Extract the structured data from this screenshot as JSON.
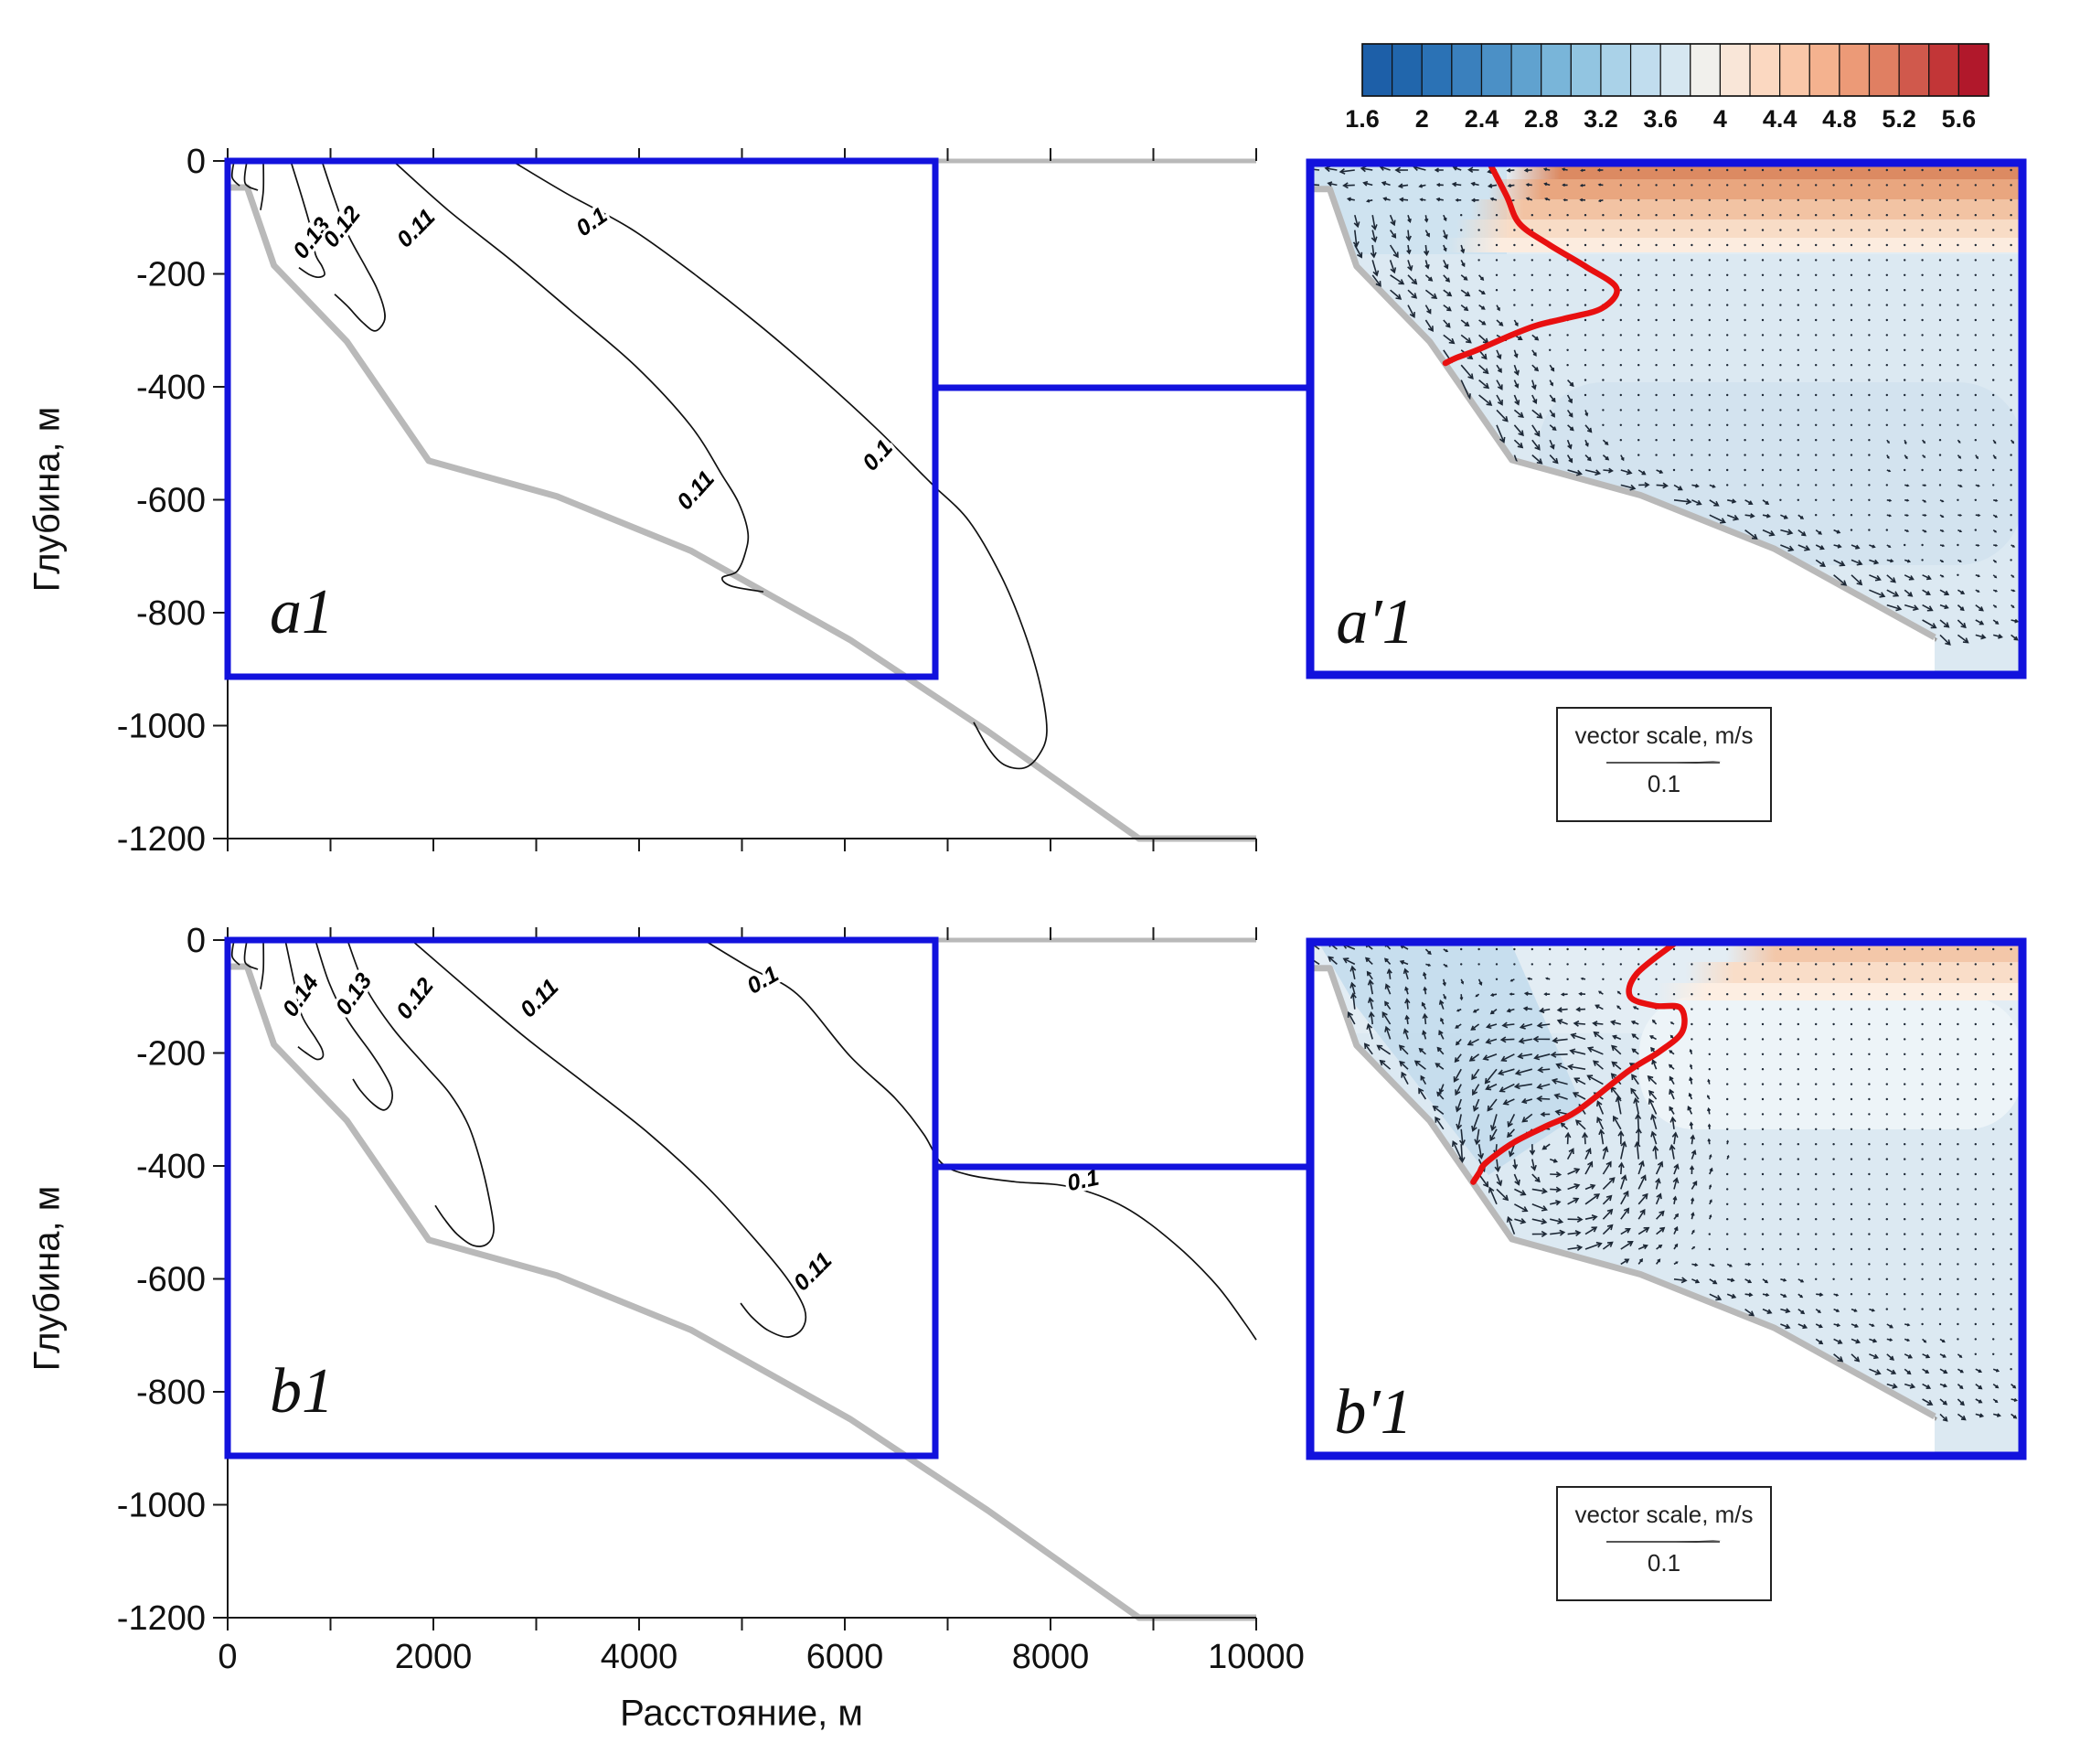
{
  "figure": {
    "title": "",
    "background": "#ffffff"
  },
  "colors": {
    "box_blue": "#1212dd",
    "isotherm_red": "#e81010",
    "bathy_gray": "#b9b9b9",
    "axis_black": "#1a1a1a",
    "contour_black": "#111111",
    "arrow_dark": "#1d2836",
    "water_base": "#e3edf4",
    "water_deep": "#dcе9f2"
  },
  "axes": {
    "x": {
      "label": "Расстояние, м",
      "min": 0,
      "max": 10000,
      "minor_step": 1000,
      "tick_labels": [
        "0",
        "2000",
        "4000",
        "6000",
        "8000",
        "10000"
      ]
    },
    "y": {
      "label": "Глубина, м",
      "min": -1200,
      "max": 0,
      "tick_labels": [
        "0",
        "-200",
        "-400",
        "-600",
        "-800",
        "-1000",
        "-1200"
      ]
    }
  },
  "colorbar": {
    "min": 1.6,
    "max": 5.8,
    "step": 0.2,
    "tick_labels": [
      "1.6",
      "2",
      "2.4",
      "2.8",
      "3.2",
      "3.6",
      "4",
      "4.4",
      "4.8",
      "5.2",
      "5.6"
    ],
    "cells": [
      "#1d5fa8",
      "#2166ac",
      "#2b72b5",
      "#3a80bd",
      "#4b90c6",
      "#60a2cf",
      "#79b5d9",
      "#92c5e1",
      "#aad2e8",
      "#c1ddee",
      "#d6e7f1",
      "#f1f0ec",
      "#f9e6d8",
      "#fbd8c1",
      "#f9c7a9",
      "#f4b28f",
      "#ec9a77",
      "#e07f62",
      "#d0594c",
      "#c23637",
      "#b1182b"
    ]
  },
  "vector_scale": {
    "title": "vector scale, m/s",
    "value": "0.1"
  },
  "chart_data": {
    "type": "multi-panel ocean transect: contour maps (left) and temperature+velocity quiver sections (right)",
    "x_axis": {
      "label": "Расстояние, м",
      "range_m": [
        0,
        10000
      ]
    },
    "y_axis": {
      "label": "Глубина, м",
      "range_m": [
        -1200,
        0
      ]
    },
    "inset_box": {
      "x_range_m": [
        0,
        6900
      ],
      "depth_range_m": [
        -915,
        0
      ],
      "connector_depth_m": -400
    },
    "bathymetry_m": [
      [
        0,
        -47
      ],
      [
        190,
        -47
      ],
      [
        450,
        -185
      ],
      [
        1160,
        -320
      ],
      [
        1955,
        -531
      ],
      [
        3200,
        -594
      ],
      [
        4500,
        -690
      ],
      [
        6050,
        -848
      ],
      [
        7390,
        -1010
      ],
      [
        8860,
        -1200
      ],
      [
        10000,
        -1200
      ]
    ],
    "panels": [
      {
        "id": "a1",
        "row": 0,
        "side": "left",
        "kind": "contour",
        "letter": "a1",
        "contour_levels": [
          0.1,
          0.11,
          0.12,
          0.13
        ],
        "contours": [
          {
            "level": null,
            "pts": [
              [
                62,
                0
              ],
              [
                44,
                -29
              ],
              [
                116,
                -44
              ]
            ]
          },
          {
            "level": null,
            "pts": [
              [
                187,
                0
              ],
              [
                169,
                -39
              ],
              [
                293,
                -52
              ]
            ]
          },
          {
            "level": null,
            "pts": [
              [
                347,
                0
              ],
              [
                347,
                -52
              ],
              [
                320,
                -87
              ]
            ]
          },
          {
            "level": 0.13,
            "pts": [
              [
                613,
                0
              ],
              [
                720,
                -63
              ],
              [
                809,
                -120
              ],
              [
                853,
                -165
              ],
              [
                916,
                -186
              ],
              [
                942,
                -201
              ],
              [
                880,
                -206
              ],
              [
                791,
                -201
              ],
              [
                693,
                -189
              ]
            ]
          },
          {
            "level": 0.12,
            "pts": [
              [
                916,
                0
              ],
              [
                1031,
                -63
              ],
              [
                1164,
                -128
              ],
              [
                1342,
                -188
              ],
              [
                1449,
                -225
              ],
              [
                1520,
                -262
              ],
              [
                1520,
                -285
              ],
              [
                1431,
                -301
              ],
              [
                1307,
                -285
              ],
              [
                1164,
                -257
              ],
              [
                1040,
                -236
              ]
            ]
          },
          {
            "level": 0.11,
            "pts": [
              [
                1609,
                0
              ],
              [
                2142,
                -87
              ],
              [
                2764,
                -177
              ],
              [
                3342,
                -266
              ],
              [
                3964,
                -363
              ],
              [
                4498,
                -468
              ],
              [
                4809,
                -557
              ],
              [
                4969,
                -606
              ],
              [
                5058,
                -658
              ],
              [
                5031,
                -695
              ],
              [
                4951,
                -727
              ],
              [
                4809,
                -738
              ],
              [
                4898,
                -753
              ],
              [
                5209,
                -763
              ]
            ]
          },
          {
            "level": 0.1,
            "pts": [
              [
                2764,
                0
              ],
              [
                3298,
                -58
              ],
              [
                3920,
                -120
              ],
              [
                4542,
                -201
              ],
              [
                5164,
                -290
              ],
              [
                5787,
                -387
              ],
              [
                6320,
                -476
              ],
              [
                6764,
                -557
              ],
              [
                6880,
                -578
              ],
              [
                7209,
                -638
              ],
              [
                7520,
                -735
              ],
              [
                7742,
                -832
              ],
              [
                7902,
                -930
              ],
              [
                7964,
                -1011
              ],
              [
                7884,
                -1053
              ],
              [
                7742,
                -1075
              ],
              [
                7547,
                -1069
              ],
              [
                7396,
                -1040
              ],
              [
                7253,
                -994
              ]
            ]
          }
        ],
        "contour_labels": [
          {
            "t": "0.13",
            "m": [
              827,
              -138
            ],
            "r": -52
          },
          {
            "t": "0.12",
            "m": [
              1120,
              -118
            ],
            "r": -52
          },
          {
            "t": "0.11",
            "m": [
              1840,
              -121
            ],
            "r": -45
          },
          {
            "t": "0.1",
            "m": [
              3547,
              -110
            ],
            "r": -35
          },
          {
            "t": "0.11",
            "m": [
              4560,
              -585
            ],
            "r": -48
          },
          {
            "t": "0.1",
            "m": [
              6329,
              -523
            ],
            "r": -48
          }
        ]
      },
      {
        "id": "b1",
        "row": 1,
        "side": "left",
        "kind": "contour",
        "letter": "b1",
        "contour_levels": [
          0.1,
          0.11,
          0.12,
          0.13,
          0.14
        ],
        "contours": [
          {
            "level": null,
            "pts": [
              [
                62,
                0
              ],
              [
                44,
                -29
              ],
              [
                116,
                -44
              ]
            ]
          },
          {
            "level": null,
            "pts": [
              [
                187,
                0
              ],
              [
                169,
                -39
              ],
              [
                293,
                -52
              ]
            ]
          },
          {
            "level": null,
            "pts": [
              [
                347,
                0
              ],
              [
                347,
                -52
              ],
              [
                320,
                -87
              ]
            ]
          },
          {
            "level": 0.14,
            "pts": [
              [
                560,
                0
              ],
              [
                649,
                -76
              ],
              [
                720,
                -133
              ],
              [
                853,
                -173
              ],
              [
                916,
                -193
              ],
              [
                924,
                -207
              ],
              [
                862,
                -211
              ],
              [
                756,
                -199
              ],
              [
                684,
                -189
              ]
            ]
          },
          {
            "level": 0.13,
            "pts": [
              [
                853,
                0
              ],
              [
                987,
                -76
              ],
              [
                1164,
                -141
              ],
              [
                1387,
                -198
              ],
              [
                1502,
                -230
              ],
              [
                1591,
                -262
              ],
              [
                1591,
                -287
              ],
              [
                1520,
                -301
              ],
              [
                1413,
                -290
              ],
              [
                1289,
                -266
              ],
              [
                1218,
                -246
              ]
            ]
          },
          {
            "level": 0.12,
            "pts": [
              [
                1164,
                0
              ],
              [
                1342,
                -84
              ],
              [
                1609,
                -157
              ],
              [
                1920,
                -222
              ],
              [
                2160,
                -272
              ],
              [
                2338,
                -327
              ],
              [
                2453,
                -389
              ],
              [
                2542,
                -457
              ],
              [
                2587,
                -513
              ],
              [
                2524,
                -538
              ],
              [
                2391,
                -541
              ],
              [
                2231,
                -521
              ],
              [
                2107,
                -494
              ],
              [
                2018,
                -470
              ]
            ]
          },
          {
            "level": 0.11,
            "pts": [
              [
                1787,
                0
              ],
              [
                2320,
                -84
              ],
              [
                2898,
                -173
              ],
              [
                3476,
                -254
              ],
              [
                4098,
                -343
              ],
              [
                4676,
                -440
              ],
              [
                5164,
                -538
              ],
              [
                5449,
                -602
              ],
              [
                5609,
                -654
              ],
              [
                5591,
                -687
              ],
              [
                5449,
                -703
              ],
              [
                5253,
                -691
              ],
              [
                5093,
                -667
              ],
              [
                4987,
                -643
              ]
            ]
          },
          {
            "level": 0.1,
            "pts": [
              [
                4631,
                0
              ],
              [
                5076,
                -49
              ],
              [
                5538,
                -96
              ],
              [
                6053,
                -206
              ],
              [
                6489,
                -280
              ],
              [
                6764,
                -343
              ],
              [
                6942,
                -395
              ],
              [
                7209,
                -416
              ],
              [
                7653,
                -428
              ],
              [
                8187,
                -437
              ],
              [
                8720,
                -473
              ],
              [
                9209,
                -538
              ],
              [
                9609,
                -610
              ],
              [
                9876,
                -675
              ],
              [
                10000,
                -708
              ]
            ]
          }
        ],
        "contour_labels": [
          {
            "t": "0.14",
            "m": [
              720,
              -100
            ],
            "r": -55
          },
          {
            "t": "0.13",
            "m": [
              1236,
              -97
            ],
            "r": -55
          },
          {
            "t": "0.12",
            "m": [
              1831,
              -105
            ],
            "r": -52
          },
          {
            "t": "0.11",
            "m": [
              3040,
              -105
            ],
            "r": -45
          },
          {
            "t": "0.1",
            "m": [
              5209,
              -73
            ],
            "r": -30
          },
          {
            "t": "0.11",
            "m": [
              5698,
              -589
            ],
            "r": -45
          },
          {
            "t": "0.1",
            "m": [
              8320,
              -428
            ],
            "r": -12
          }
        ]
      },
      {
        "id": "a1p",
        "row": 0,
        "side": "right",
        "kind": "quiver",
        "letter": "a′1",
        "field": "surface offshore flow + strong downslope jet, warm surface layer (4.4–5.4) over cool interior (2.8–3.4)",
        "isotherm_level_c": 4,
        "red_isotherm_m": [
          [
            1745,
            -3
          ],
          [
            1905,
            -60
          ],
          [
            2029,
            -109
          ],
          [
            2321,
            -147
          ],
          [
            2675,
            -186
          ],
          [
            2968,
            -224
          ],
          [
            2826,
            -260
          ],
          [
            2472,
            -278
          ],
          [
            2188,
            -291
          ],
          [
            1922,
            -310
          ],
          [
            1612,
            -335
          ],
          [
            1409,
            -349
          ],
          [
            1310,
            -358
          ]
        ]
      },
      {
        "id": "b1p",
        "row": 1,
        "side": "right",
        "kind": "quiver",
        "letter": "b′1",
        "field": "cyclonic eddy over slope near 2000 m / -400 m, weak warm band at surface right (3.8–4.4), cool interior (2.8–3.4)",
        "isotherm_level_c": 4,
        "red_isotherm_m": [
          [
            3535,
            -2
          ],
          [
            3163,
            -57
          ],
          [
            3101,
            -98
          ],
          [
            3340,
            -114
          ],
          [
            3588,
            -118
          ],
          [
            3606,
            -160
          ],
          [
            3384,
            -196
          ],
          [
            3074,
            -232
          ],
          [
            2587,
            -302
          ],
          [
            2277,
            -330
          ],
          [
            1967,
            -359
          ],
          [
            1701,
            -395
          ],
          [
            1640,
            -412
          ],
          [
            1580,
            -429
          ]
        ]
      }
    ]
  }
}
